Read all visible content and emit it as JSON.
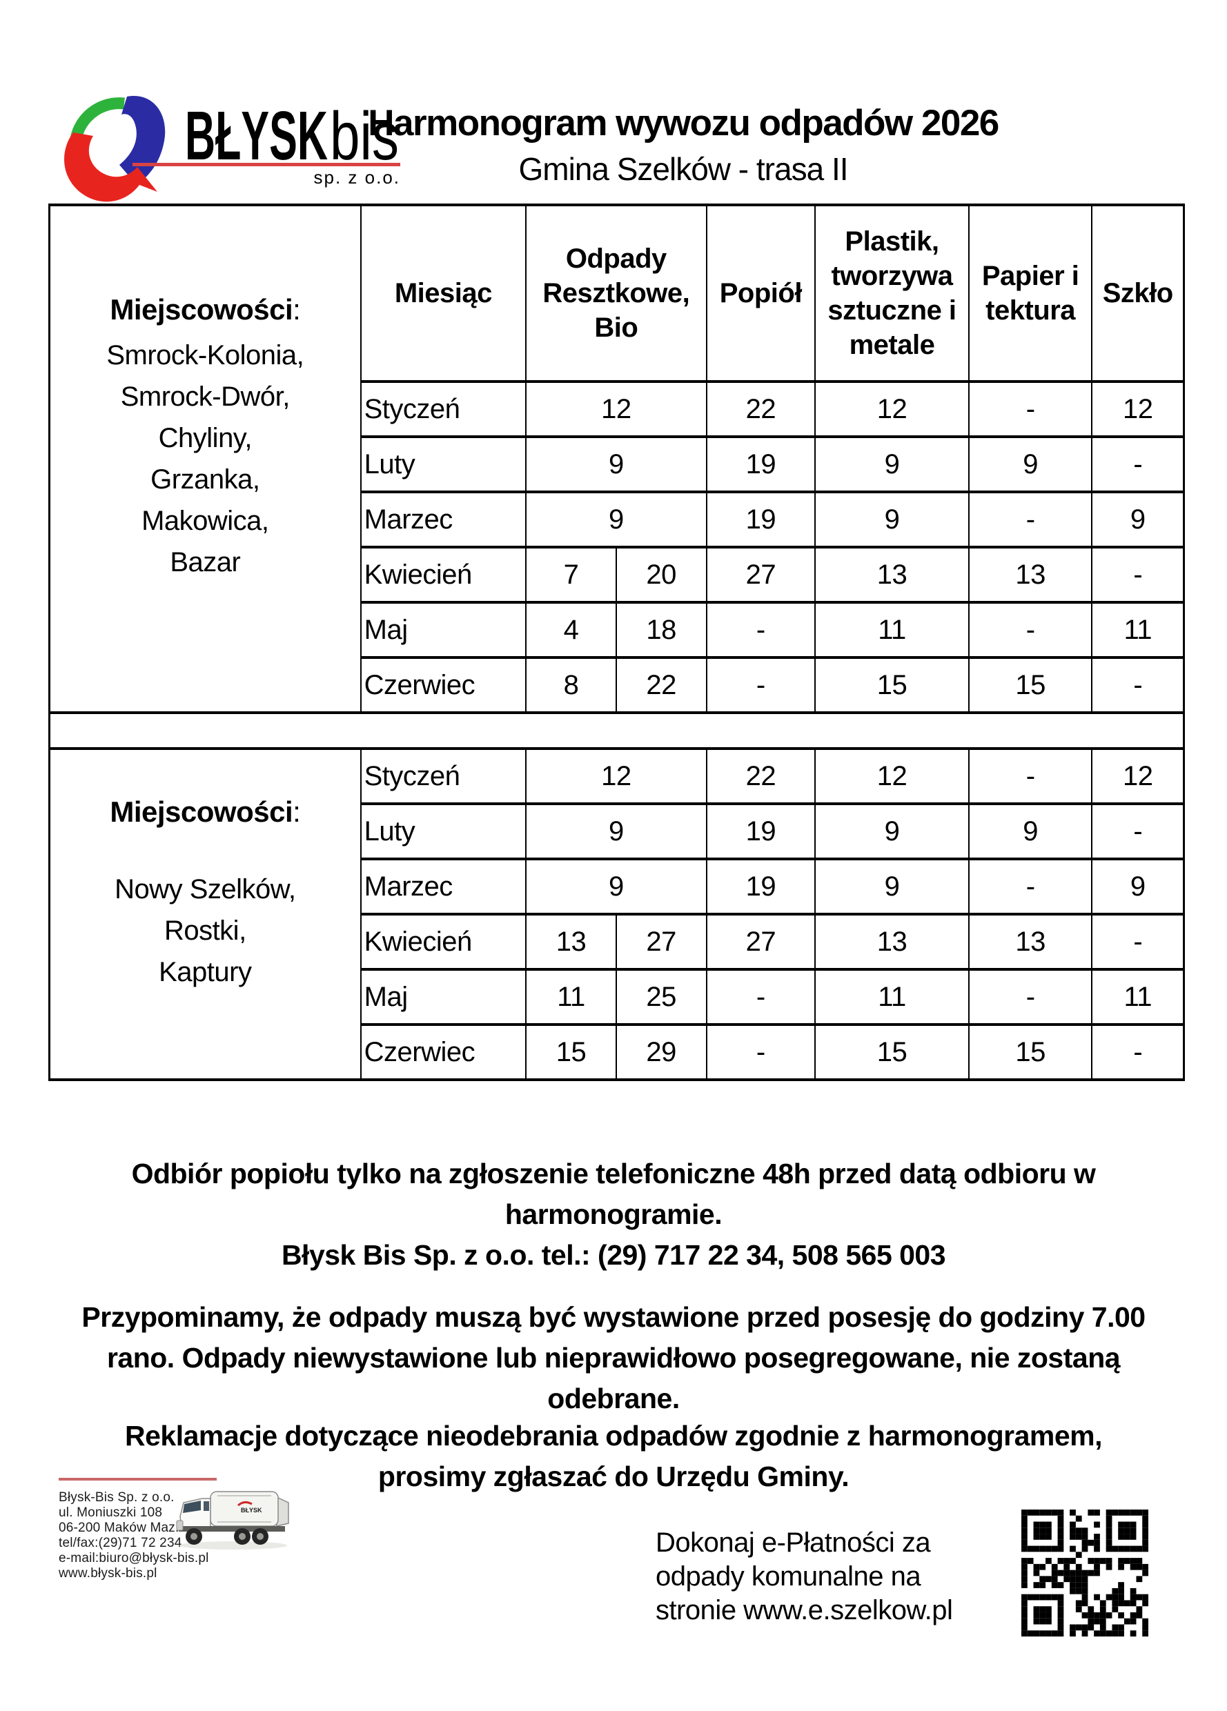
{
  "header": {
    "title": "Harmonogram wywozu odpadów 2026",
    "subtitle": "Gmina Szelków - trasa II"
  },
  "logo": {
    "brand": "BŁYSK",
    "brand_suffix": "bis",
    "subtext": "sp. z o.o.",
    "colors": {
      "green": "#2db33c",
      "blue": "#2b2ca4",
      "red": "#e8241f",
      "underline": "#d94343"
    }
  },
  "table": {
    "headers": {
      "places": "Miejscowości",
      "places_colon": ":",
      "month": "Miesiąc",
      "cols": [
        "Odpady Resztkowe, Bio",
        "Popiół",
        "Plastik, tworzywa sztuczne i metale",
        "Papier i tektura",
        "Szkło"
      ]
    },
    "groups": [
      {
        "villages": [
          "Smrock-Kolonia,",
          "Smrock-Dwór,",
          "Chyliny,",
          "Grzanka,",
          "Makowica,",
          "Bazar"
        ],
        "rows": [
          {
            "month": "Styczeń",
            "odpady_a": "12",
            "popiol": "22",
            "plastik": "12",
            "papier": "-",
            "szklo": "12"
          },
          {
            "month": "Luty",
            "odpady_a": "9",
            "popiol": "19",
            "plastik": "9",
            "papier": "9",
            "szklo": "-"
          },
          {
            "month": "Marzec",
            "odpady_a": "9",
            "popiol": "19",
            "plastik": "9",
            "papier": "-",
            "szklo": "9"
          },
          {
            "month": "Kwiecień",
            "odpady_a": "7",
            "odpady_b": "20",
            "popiol": "27",
            "plastik": "13",
            "papier": "13",
            "szklo": "-"
          },
          {
            "month": "Maj",
            "odpady_a": "4",
            "odpady_b": "18",
            "popiol": "-",
            "plastik": "11",
            "papier": "-",
            "szklo": "11"
          },
          {
            "month": "Czerwiec",
            "odpady_a": "8",
            "odpady_b": "22",
            "popiol": "-",
            "plastik": "15",
            "papier": "15",
            "szklo": "-"
          }
        ]
      },
      {
        "villages": [
          "Nowy Szelków,",
          "Rostki,",
          "Kaptury"
        ],
        "rows": [
          {
            "month": "Styczeń",
            "odpady_a": "12",
            "popiol": "22",
            "plastik": "12",
            "papier": "-",
            "szklo": "12"
          },
          {
            "month": "Luty",
            "odpady_a": "9",
            "popiol": "19",
            "plastik": "9",
            "papier": "9",
            "szklo": "-"
          },
          {
            "month": "Marzec",
            "odpady_a": "9",
            "popiol": "19",
            "plastik": "9",
            "papier": "-",
            "szklo": "9"
          },
          {
            "month": "Kwiecień",
            "odpady_a": "13",
            "odpady_b": "27",
            "popiol": "27",
            "plastik": "13",
            "papier": "13",
            "szklo": "-"
          },
          {
            "month": "Maj",
            "odpady_a": "11",
            "odpady_b": "25",
            "popiol": "-",
            "plastik": "11",
            "papier": "-",
            "szklo": "11"
          },
          {
            "month": "Czerwiec",
            "odpady_a": "15",
            "odpady_b": "29",
            "popiol": "-",
            "plastik": "15",
            "papier": "15",
            "szklo": "-"
          }
        ]
      }
    ]
  },
  "notes": [
    {
      "lines": [
        "Odbiór popiołu tylko na zgłoszenie telefoniczne 48h przed datą odbioru w",
        "harmonogramie.",
        "Błysk Bis Sp. z o.o. tel.: (29) 717 22 34, 508 565 003"
      ]
    },
    {
      "lines": [
        "Przypominamy, że odpady muszą być wystawione przed posesję do godziny 7.00",
        "rano. Odpady niewystawione lub nieprawidłowo posegregowane, nie zostaną",
        "odebrane."
      ]
    },
    {
      "lines": [
        "Reklamacje dotyczące nieodebrania odpadów zgodnie z harmonogramem,",
        "prosimy zgłaszać do Urzędu Gminy."
      ]
    }
  ],
  "footer": {
    "rule_color": "#c96868",
    "address_lines": [
      "Błysk-Bis Sp. z o.o.",
      "ul. Moniuszki 108",
      "06-200 Maków Maz.",
      "tel/fax:(29)71 72 234",
      "e-mail:biuro@błysk-bis.pl",
      "www.błysk-bis.pl"
    ],
    "payment_lines": [
      "Dokonaj e-Płatności za",
      "odpady komunalne na",
      "stronie www.e.szelkow.pl"
    ]
  }
}
